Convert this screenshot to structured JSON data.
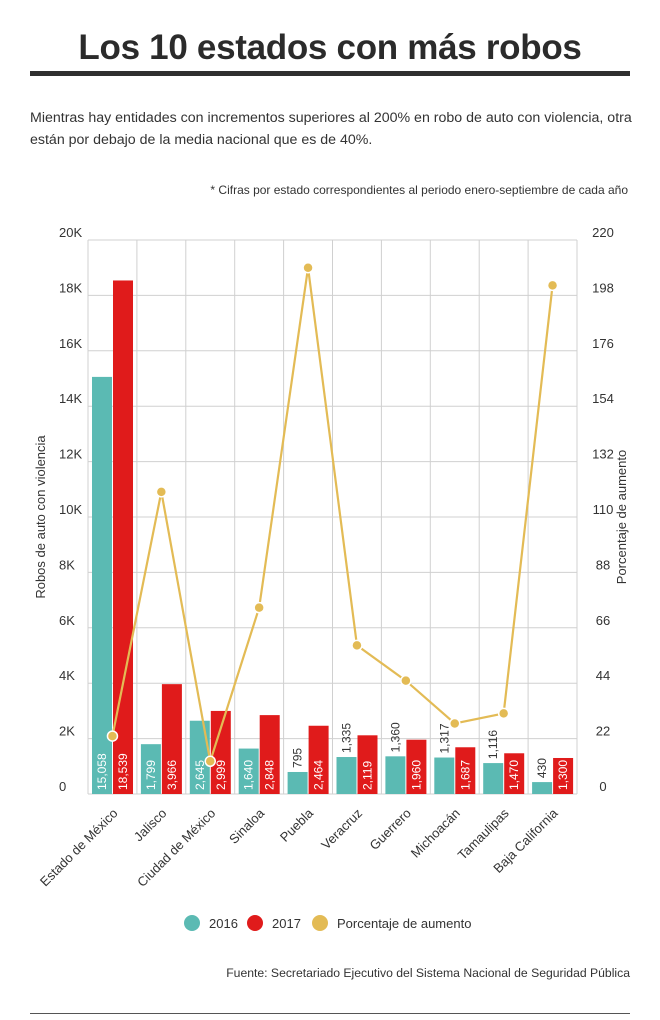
{
  "header": {
    "title": "Los 10 estados con más robos",
    "subtitle": "Mientras hay entidades con incrementos superiores al 200% en robo de auto con violencia, otra están por debajo de la media nacional que es de 40%.",
    "note": "* Cifras por estado correspondientes al periodo enero-septiembre de cada año"
  },
  "footer": {
    "source": "Fuente: Secretariado Ejecutivo del Sistema Nacional de Seguridad Pública"
  },
  "colors": {
    "series_2016": "#5bbab3",
    "series_2017": "#e01b1b",
    "line": "#e3bb55",
    "grid": "#d0d0d0"
  },
  "chart_data": {
    "type": "bar",
    "categories": [
      "Estado de México",
      "Jalisco",
      "Ciudad de México",
      "Sinaloa",
      "Puebla",
      "Veracruz",
      "Guerrero",
      "Michoacán",
      "Tamaulipas",
      "Baja California"
    ],
    "series": [
      {
        "name": "2016",
        "values": [
          15058,
          1799,
          2645,
          1640,
          795,
          1335,
          1360,
          1317,
          1116,
          430
        ],
        "labels": [
          "15,058",
          "1,799",
          "2,645",
          "1,640",
          "795",
          "1,335",
          "1,360",
          "1,317",
          "1,116",
          "430"
        ]
      },
      {
        "name": "2017",
        "values": [
          18539,
          3966,
          2999,
          2848,
          2464,
          2119,
          1960,
          1687,
          1470,
          1300
        ],
        "labels": [
          "18,539",
          "3,966",
          "2,999",
          "2,848",
          "2,464",
          "2,119",
          "1,960",
          "1,687",
          "1,470",
          "1,300"
        ]
      }
    ],
    "line_series": {
      "name": "Porcentaje de aumento",
      "axis": "right",
      "values": [
        23,
        120,
        13,
        74,
        209,
        59,
        45,
        28,
        32,
        202
      ]
    },
    "ylabel": "Robos de auto con violencia",
    "y2label": "Porcentaje de aumento",
    "ylim": [
      0,
      20000
    ],
    "y2lim": [
      0,
      220
    ],
    "yticks": [
      "0",
      "2K",
      "4K",
      "6K",
      "8K",
      "10K",
      "12K",
      "14K",
      "16K",
      "18K",
      "20K"
    ],
    "y2ticks": [
      "0",
      "22",
      "44",
      "66",
      "88",
      "110",
      "132",
      "154",
      "176",
      "198",
      "220"
    ],
    "legend": [
      "2016",
      "2017",
      "Porcentaje de aumento"
    ],
    "legend_position": "bottom",
    "grid": true
  }
}
